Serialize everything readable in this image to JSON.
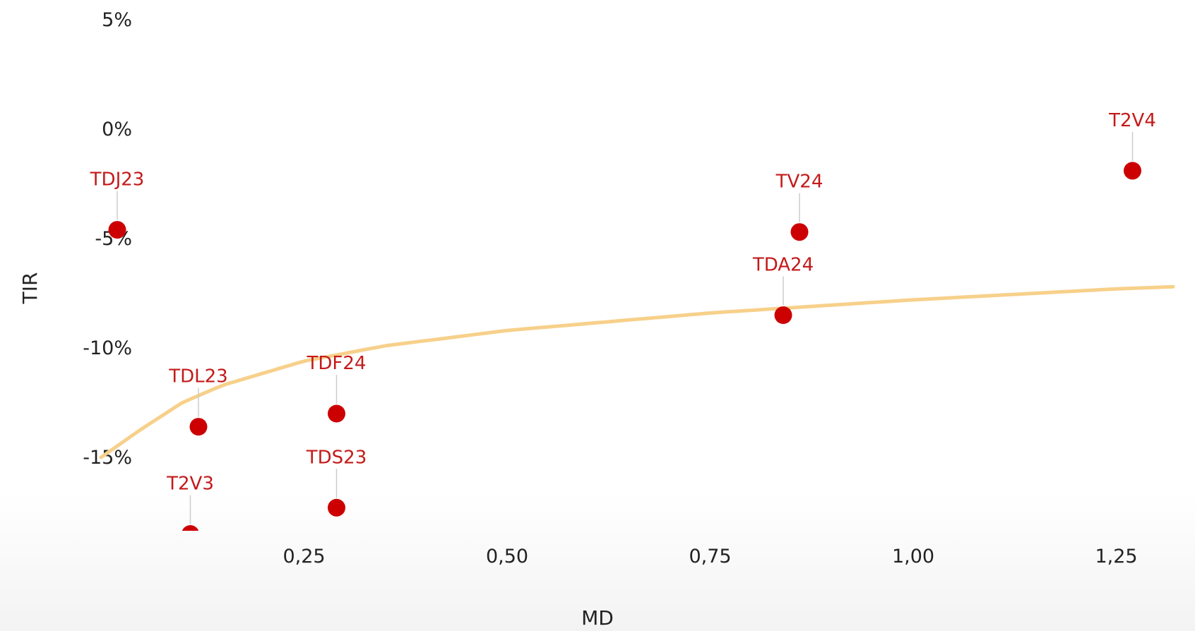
{
  "colors": {
    "point": "#cc0000",
    "label": "#c41a1a",
    "trend": "#f7d08a",
    "leader": "#cccccc"
  },
  "chart_data": {
    "type": "scatter",
    "xlabel": "MD",
    "ylabel": "TIR",
    "x_ticks": [
      "0,25",
      "0,50",
      "0,75",
      "1,00",
      "1,25"
    ],
    "x_tick_values": [
      0.25,
      0.5,
      0.75,
      1.0,
      1.25
    ],
    "y_ticks": [
      "5%",
      "0%",
      "-5%",
      "-10%",
      "-15%"
    ],
    "y_tick_values": [
      5,
      0,
      -5,
      -10,
      -15
    ],
    "xlim": [
      0.0,
      1.3
    ],
    "ylim": [
      -18.5,
      5
    ],
    "grid": false,
    "legend": "none",
    "points": [
      {
        "label": "TDJ23",
        "x": 0.02,
        "y": -4.6
      },
      {
        "label": "TDL23",
        "x": 0.12,
        "y": -13.6
      },
      {
        "label": "T2V3",
        "x": 0.11,
        "y": -18.5
      },
      {
        "label": "TDF24",
        "x": 0.29,
        "y": -13.0
      },
      {
        "label": "TDS23",
        "x": 0.29,
        "y": -17.3
      },
      {
        "label": "TV24",
        "x": 0.86,
        "y": -4.7
      },
      {
        "label": "TDA24",
        "x": 0.84,
        "y": -8.5
      },
      {
        "label": "T2V4",
        "x": 1.27,
        "y": -1.9
      }
    ],
    "trendline": {
      "type": "logarithmic",
      "x": [
        0.0,
        0.05,
        0.1,
        0.15,
        0.25,
        0.35,
        0.5,
        0.75,
        1.0,
        1.25,
        1.32
      ],
      "y": [
        -15.0,
        -13.7,
        -12.5,
        -11.7,
        -10.6,
        -9.9,
        -9.2,
        -8.4,
        -7.8,
        -7.3,
        -7.2
      ]
    }
  }
}
